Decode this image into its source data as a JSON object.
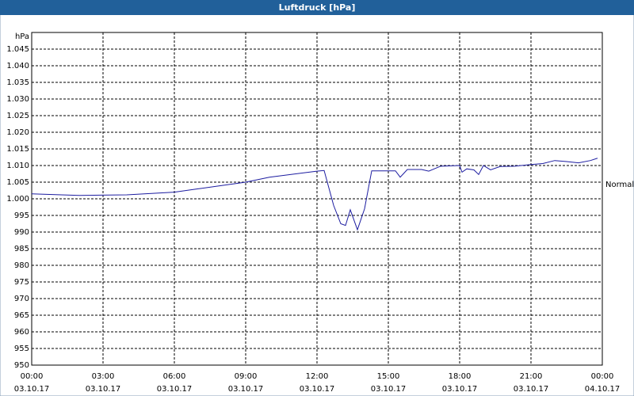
{
  "chart_data": {
    "type": "line",
    "title": "Luftdruck [hPa]",
    "y_unit": "hPa",
    "annotation": "Normal",
    "x": [
      0,
      2,
      4,
      6,
      7,
      9,
      10,
      12,
      12.3,
      12.7,
      13,
      13.2,
      13.4,
      13.7,
      14,
      14.3,
      15.3,
      15.5,
      15.8,
      16.4,
      16.7,
      17.2,
      18,
      18.1,
      18.3,
      18.6,
      18.8,
      19,
      19.3,
      19.7,
      20.3,
      21,
      21.5,
      22,
      22.5,
      23,
      23.5,
      23.8
    ],
    "series": [
      {
        "name": "Luftdruck",
        "color": "#1c1ca0",
        "values": [
          1001.5,
          1001,
          1001.2,
          1002,
          1003,
          1005,
          1006.5,
          1008.3,
          1008.5,
          998,
          992.5,
          992,
          996.7,
          990.7,
          997,
          1008.4,
          1008.4,
          1006.5,
          1008.8,
          1008.8,
          1008.3,
          1009.8,
          1010,
          1008,
          1009,
          1008.7,
          1007.3,
          1010,
          1008.7,
          1009.7,
          1009.8,
          1010.3,
          1010.6,
          1011.5,
          1011.2,
          1010.8,
          1011.5,
          1012.2
        ]
      }
    ],
    "xlim": [
      0,
      24
    ],
    "xticks": [
      {
        "value": 0,
        "label": "00:00"
      },
      {
        "value": 3,
        "label": "03:00"
      },
      {
        "value": 6,
        "label": "06:00"
      },
      {
        "value": 9,
        "label": "09:00"
      },
      {
        "value": 12,
        "label": "12:00"
      },
      {
        "value": 15,
        "label": "15:00"
      },
      {
        "value": 18,
        "label": "18:00"
      },
      {
        "value": 21,
        "label": "21:00"
      },
      {
        "value": 24,
        "label": "00:00"
      }
    ],
    "xtick_dates": [
      "03.10.17",
      "03.10.17",
      "03.10.17",
      "03.10.17",
      "03.10.17",
      "03.10.17",
      "03.10.17",
      "03.10.17",
      "04.10.17"
    ],
    "ylim": [
      950,
      1050
    ],
    "yticks": [
      950,
      955,
      960,
      965,
      970,
      975,
      980,
      985,
      990,
      995,
      {
        "value": 1000,
        "label": "1.000"
      },
      {
        "value": 1005,
        "label": "1.005"
      },
      {
        "value": 1010,
        "label": "1.010"
      },
      {
        "value": 1015,
        "label": "1.015"
      },
      {
        "value": 1020,
        "label": "1.020"
      },
      {
        "value": 1025,
        "label": "1.025"
      },
      {
        "value": 1030,
        "label": "1.030"
      },
      {
        "value": 1035,
        "label": "1.035"
      },
      {
        "value": 1040,
        "label": "1.040"
      },
      {
        "value": 1045,
        "label": "1.045"
      }
    ],
    "grid": true
  }
}
